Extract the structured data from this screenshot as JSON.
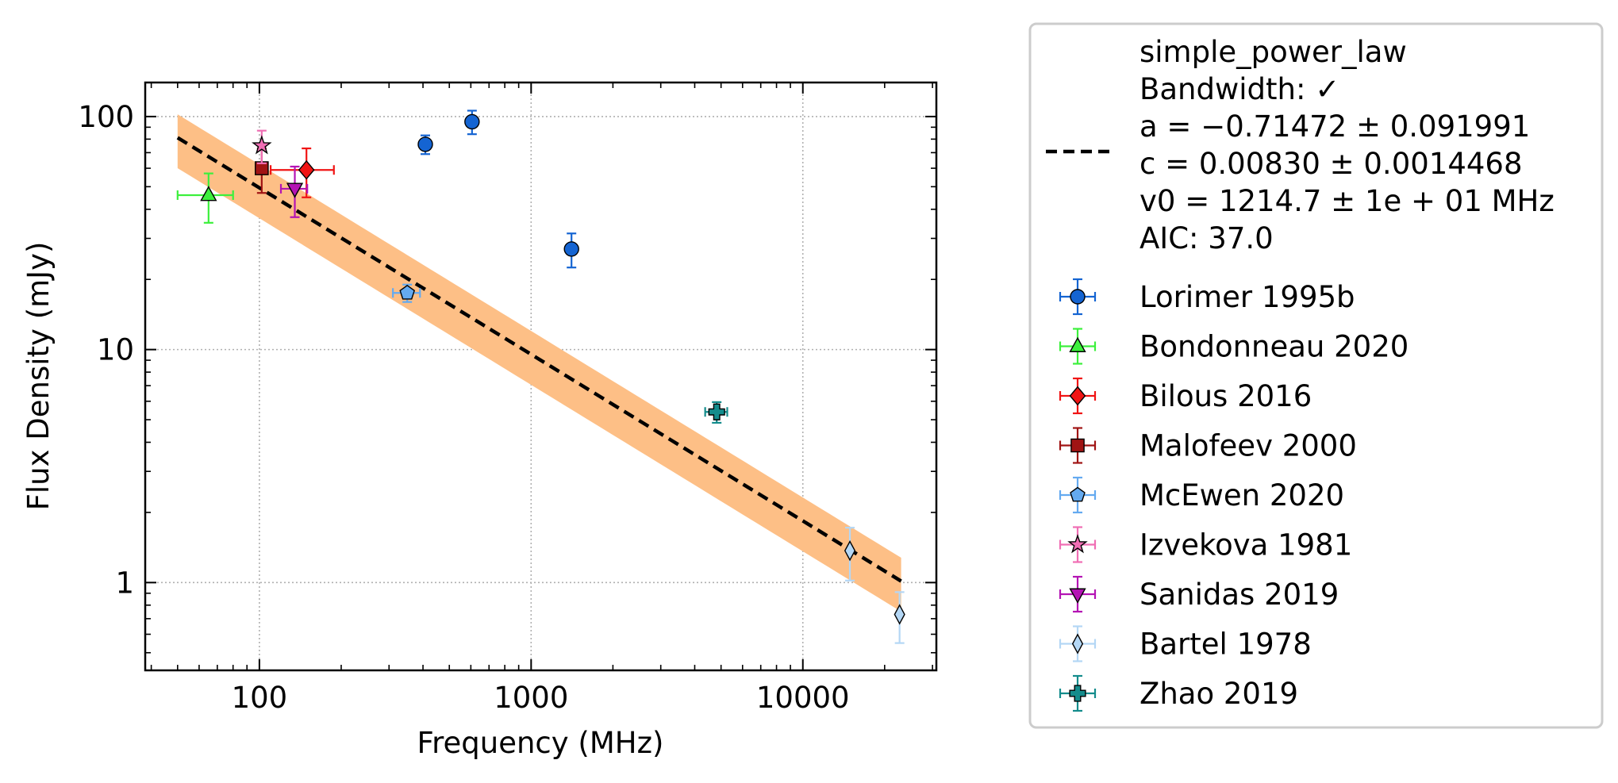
{
  "chart_data": {
    "type": "scatter",
    "title": "",
    "xlabel": "Frequency (MHz)",
    "ylabel": "Flux Density (mJy)",
    "xscale": "log",
    "yscale": "log",
    "xlim": [
      38,
      31000
    ],
    "ylim": [
      0.42,
      140
    ],
    "grid": true,
    "legend_position": "outside-right",
    "x_ticks": [
      {
        "value": 100,
        "label": "100"
      },
      {
        "value": 1000,
        "label": "1000"
      },
      {
        "value": 10000,
        "label": "10000"
      }
    ],
    "y_ticks": [
      {
        "value": 1,
        "label": "1"
      },
      {
        "value": 10,
        "label": "10"
      },
      {
        "value": 100,
        "label": "100"
      }
    ],
    "fit": {
      "name": "simple_power_law",
      "lines": [
        "simple_power_law",
        "Bandwidth: ✓",
        "a = −0.71472 ± 0.091991",
        "c = 0.00830 ± 0.0014468",
        "v0 = 1214.7 ± 1e + 01 MHz",
        "AIC: 37.0"
      ],
      "color": "#000000",
      "band_color": "#fdbf86",
      "x_range": [
        50,
        23000
      ],
      "a": -0.71472,
      "v0": 1214.7,
      "y_at_v0": 8.3,
      "band_relative_error": 0.26
    },
    "series": [
      {
        "name": "Lorimer 1995b",
        "marker": "circle",
        "color": "#1464d2",
        "points": [
          {
            "x": 408,
            "y": 76,
            "xerr": 0,
            "yerr": 7
          },
          {
            "x": 606,
            "y": 95,
            "xerr": 0,
            "yerr": 11
          },
          {
            "x": 1408,
            "y": 27,
            "xerr": 0,
            "yerr": 4.5
          }
        ]
      },
      {
        "name": "Bondonneau 2020",
        "marker": "triangle-up",
        "color": "#3cf03c",
        "points": [
          {
            "x": 65,
            "y": 46,
            "xerr": 15,
            "yerr": 11
          }
        ]
      },
      {
        "name": "Bilous 2016",
        "marker": "diamond",
        "color": "#f01414",
        "points": [
          {
            "x": 149,
            "y": 59,
            "xerr": 39,
            "yerr": 14
          }
        ]
      },
      {
        "name": "Malofeev 2000",
        "marker": "square",
        "color": "#a01414",
        "points": [
          {
            "x": 102,
            "y": 60,
            "xerr": 0,
            "yerr": 13
          }
        ]
      },
      {
        "name": "McEwen 2020",
        "marker": "pentagon",
        "color": "#64aaf0",
        "points": [
          {
            "x": 350,
            "y": 17.5,
            "xerr": 40,
            "yerr": 1.5
          }
        ]
      },
      {
        "name": "Izvekova 1981",
        "marker": "star",
        "color": "#f06eb4",
        "points": [
          {
            "x": 102,
            "y": 75,
            "xerr": 0,
            "yerr": 12
          }
        ]
      },
      {
        "name": "Sanidas 2019",
        "marker": "triangle-down",
        "color": "#b414b4",
        "points": [
          {
            "x": 135,
            "y": 49,
            "xerr": 15,
            "yerr": 12
          }
        ]
      },
      {
        "name": "Bartel 1978",
        "marker": "thin-diamond",
        "color": "#b4d7f5",
        "points": [
          {
            "x": 14900,
            "y": 1.37,
            "xerr": 0,
            "yerr": 0.35
          },
          {
            "x": 22700,
            "y": 0.73,
            "xerr": 0,
            "yerr": 0.18
          }
        ]
      },
      {
        "name": "Zhao 2019",
        "marker": "plus",
        "color": "#148c8c",
        "points": [
          {
            "x": 4820,
            "y": 5.4,
            "xerr": 450,
            "yerr": 0.55
          }
        ]
      }
    ]
  }
}
